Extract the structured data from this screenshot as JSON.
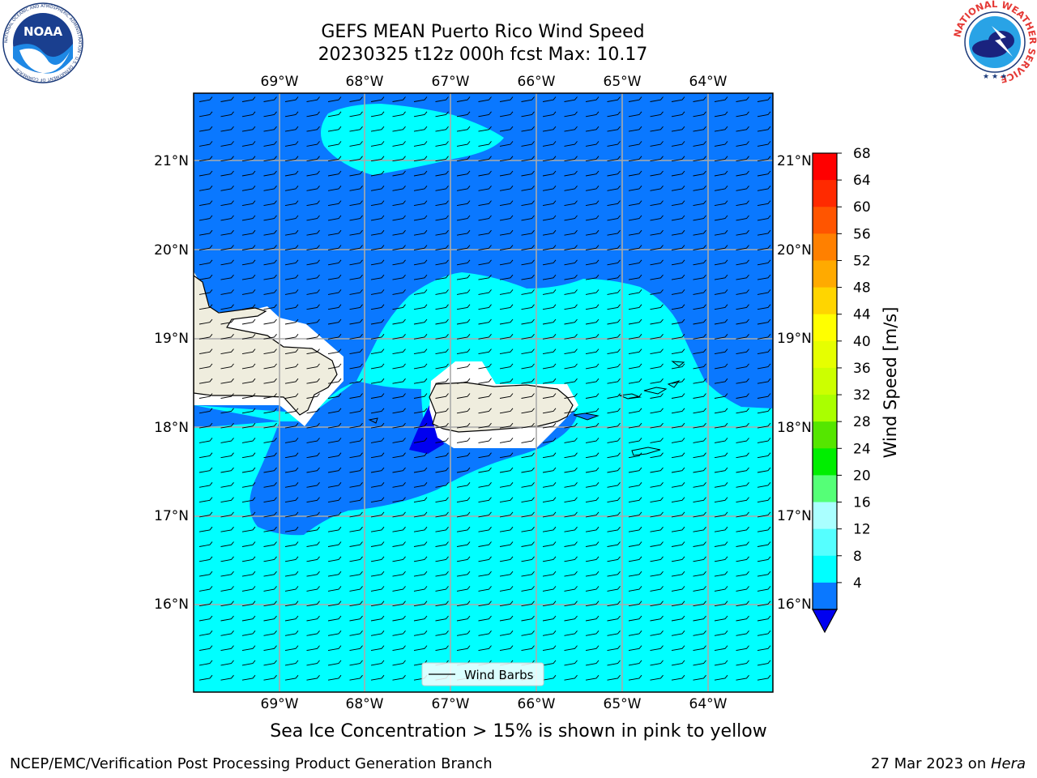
{
  "title": {
    "line1": "GEFS MEAN Puerto Rico Wind Speed",
    "line2": "20230325 t12z 000h fcst   Max: 10.17"
  },
  "map": {
    "lon_labels": [
      "69°W",
      "68°W",
      "67°W",
      "66°W",
      "65°W",
      "64°W"
    ],
    "lat_labels": [
      "21°N",
      "20°N",
      "19°N",
      "18°N",
      "17°N",
      "16°N"
    ],
    "legend_label": "Wind Barbs",
    "fill_colors": {
      "band_4_8": "#0a78ff",
      "band_8_12": "#00ffff",
      "below_4": "#0000f0",
      "land": "#efedde"
    }
  },
  "colorbar": {
    "label": "Wind Speed [m/s]",
    "ticks": [
      "68",
      "64",
      "60",
      "56",
      "52",
      "48",
      "44",
      "40",
      "36",
      "32",
      "28",
      "24",
      "20",
      "16",
      "12",
      "8",
      "4"
    ],
    "colors": [
      "#ff0000",
      "#ff2a00",
      "#ff5500",
      "#ff8000",
      "#ffaa00",
      "#ffd500",
      "#ffff00",
      "#e6ff00",
      "#ccff00",
      "#aaff00",
      "#55e600",
      "#00ee00",
      "#55ff77",
      "#aaffff",
      "#55ffff",
      "#00ffff",
      "#0a78ff"
    ],
    "under_color": "#0000f0"
  },
  "logos": {
    "noaa_text": "NOAA",
    "noaa_ring_text": "NATIONAL OCEANIC AND ATMOSPHERIC ADMINISTRATION · U.S. DEPARTMENT OF COMMERCE",
    "nws_ring_text": "NATIONAL WEATHER SERVICE"
  },
  "sea_ice_note": "Sea Ice Concentration > 15% is shown in pink to yellow",
  "footer": {
    "left": "NCEP/EMC/Verification Post Processing Product Generation Branch",
    "right_date": "27 Mar 2023 on ",
    "right_machine": "Hera"
  }
}
